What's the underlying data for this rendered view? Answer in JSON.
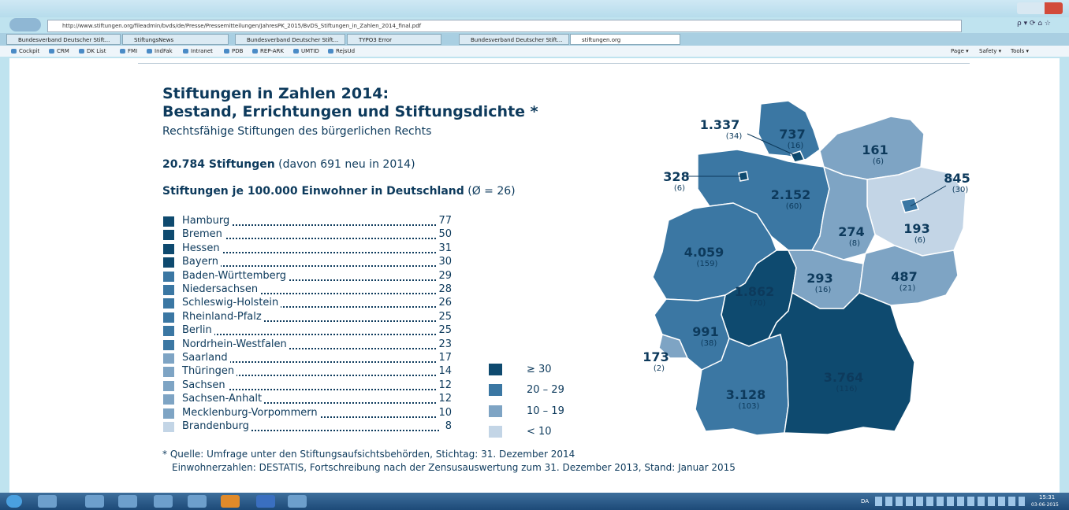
{
  "browser": {
    "url": "http://www.stiftungen.org/fileadmin/bvds/de/Presse/Pressemitteilungen/JahresPK_2015/BvDS_Stiftungen_in_Zahlen_2014_final.pdf",
    "tabs": [
      "Bundesverband Deutscher Stift...",
      "StiftungsNews",
      "Bundesverband Deutscher Stift...",
      "TYPO3 Error",
      "Bundesverband Deutscher Stift...",
      "stiftungen.org"
    ],
    "favorites": [
      "Cockpit",
      "CRM",
      "DK List",
      "FMI",
      "IndFak",
      "Intranet",
      "PDB",
      "REP-ARK",
      "UMTID",
      "RejsUd"
    ],
    "toolbar": [
      "Page",
      "Safety",
      "Tools"
    ]
  },
  "document": {
    "title_lines": [
      "Stiftungen in Zahlen 2014:",
      "Bestand, Errichtungen und Stiftungsdichte *"
    ],
    "subtitle": "Rechtsfähige Stiftungen des bürgerlichen Rechts",
    "total_bold": "20.784 Stiftungen",
    "total_rest": "(davon 691 neu in 2014)",
    "density_heading": "Stiftungen je 100.000 Einwohner in Deutschland",
    "density_avg": "(Ø = 26)",
    "density_list": [
      {
        "state": "Hamburg",
        "value": 77,
        "color": "#0e4a6f"
      },
      {
        "state": "Bremen",
        "value": 50,
        "color": "#0e4a6f"
      },
      {
        "state": "Hessen",
        "value": 31,
        "color": "#0e4a6f"
      },
      {
        "state": "Bayern",
        "value": 30,
        "color": "#0e4a6f"
      },
      {
        "state": "Baden-Württemberg",
        "value": 29,
        "color": "#3b77a3"
      },
      {
        "state": "Niedersachsen",
        "value": 28,
        "color": "#3b77a3"
      },
      {
        "state": "Schleswig-Holstein",
        "value": 26,
        "color": "#3b77a3"
      },
      {
        "state": "Rheinland-Pfalz",
        "value": 25,
        "color": "#3b77a3"
      },
      {
        "state": "Berlin",
        "value": 25,
        "color": "#3b77a3"
      },
      {
        "state": "Nordrhein-Westfalen",
        "value": 23,
        "color": "#3b77a3"
      },
      {
        "state": "Saarland",
        "value": 17,
        "color": "#7ea4c4"
      },
      {
        "state": "Thüringen",
        "value": 14,
        "color": "#7ea4c4"
      },
      {
        "state": "Sachsen",
        "value": 12,
        "color": "#7ea4c4"
      },
      {
        "state": "Sachsen-Anhalt",
        "value": 12,
        "color": "#7ea4c4"
      },
      {
        "state": "Mecklenburg-Vorpommern",
        "value": 10,
        "color": "#7ea4c4"
      },
      {
        "state": "Brandenburg",
        "value": 8,
        "color": "#c3d5e6"
      }
    ],
    "legend": [
      {
        "label": "≥ 30",
        "color": "#0e4a6f"
      },
      {
        "label": "20 – 29",
        "color": "#3b77a3"
      },
      {
        "label": "10 – 19",
        "color": "#7ea4c4"
      },
      {
        "label": "< 10",
        "color": "#c3d5e6"
      }
    ],
    "map_labels": [
      {
        "total": "737",
        "new": "(16)"
      },
      {
        "total": "1.337",
        "new": "(34)"
      },
      {
        "total": "161",
        "new": "(6)"
      },
      {
        "total": "328",
        "new": "(6)"
      },
      {
        "total": "845",
        "new": "(30)"
      },
      {
        "total": "2.152",
        "new": "(60)"
      },
      {
        "total": "274",
        "new": "(8)"
      },
      {
        "total": "193",
        "new": "(6)"
      },
      {
        "total": "4.059",
        "new": "(159)"
      },
      {
        "total": "293",
        "new": "(16)"
      },
      {
        "total": "487",
        "new": "(21)"
      },
      {
        "total": "1.862",
        "new": "(70)"
      },
      {
        "total": "991",
        "new": "(38)"
      },
      {
        "total": "173",
        "new": "(2)"
      },
      {
        "total": "3.764",
        "new": "(116)"
      },
      {
        "total": "3.128",
        "new": "(103)"
      }
    ],
    "footnote": [
      "* Quelle: Umfrage unter den Stiftungsaufsichtsbehörden, Stichtag: 31. Dezember 2014",
      "Einwohnerzahlen: DESTATIS, Fortschreibung nach der Zensusauswertung zum 31. Dezember 2013, Stand: Januar 2015"
    ]
  },
  "taskbar": {
    "language": "DA",
    "time": "15:31",
    "date": "03-06-2015"
  }
}
